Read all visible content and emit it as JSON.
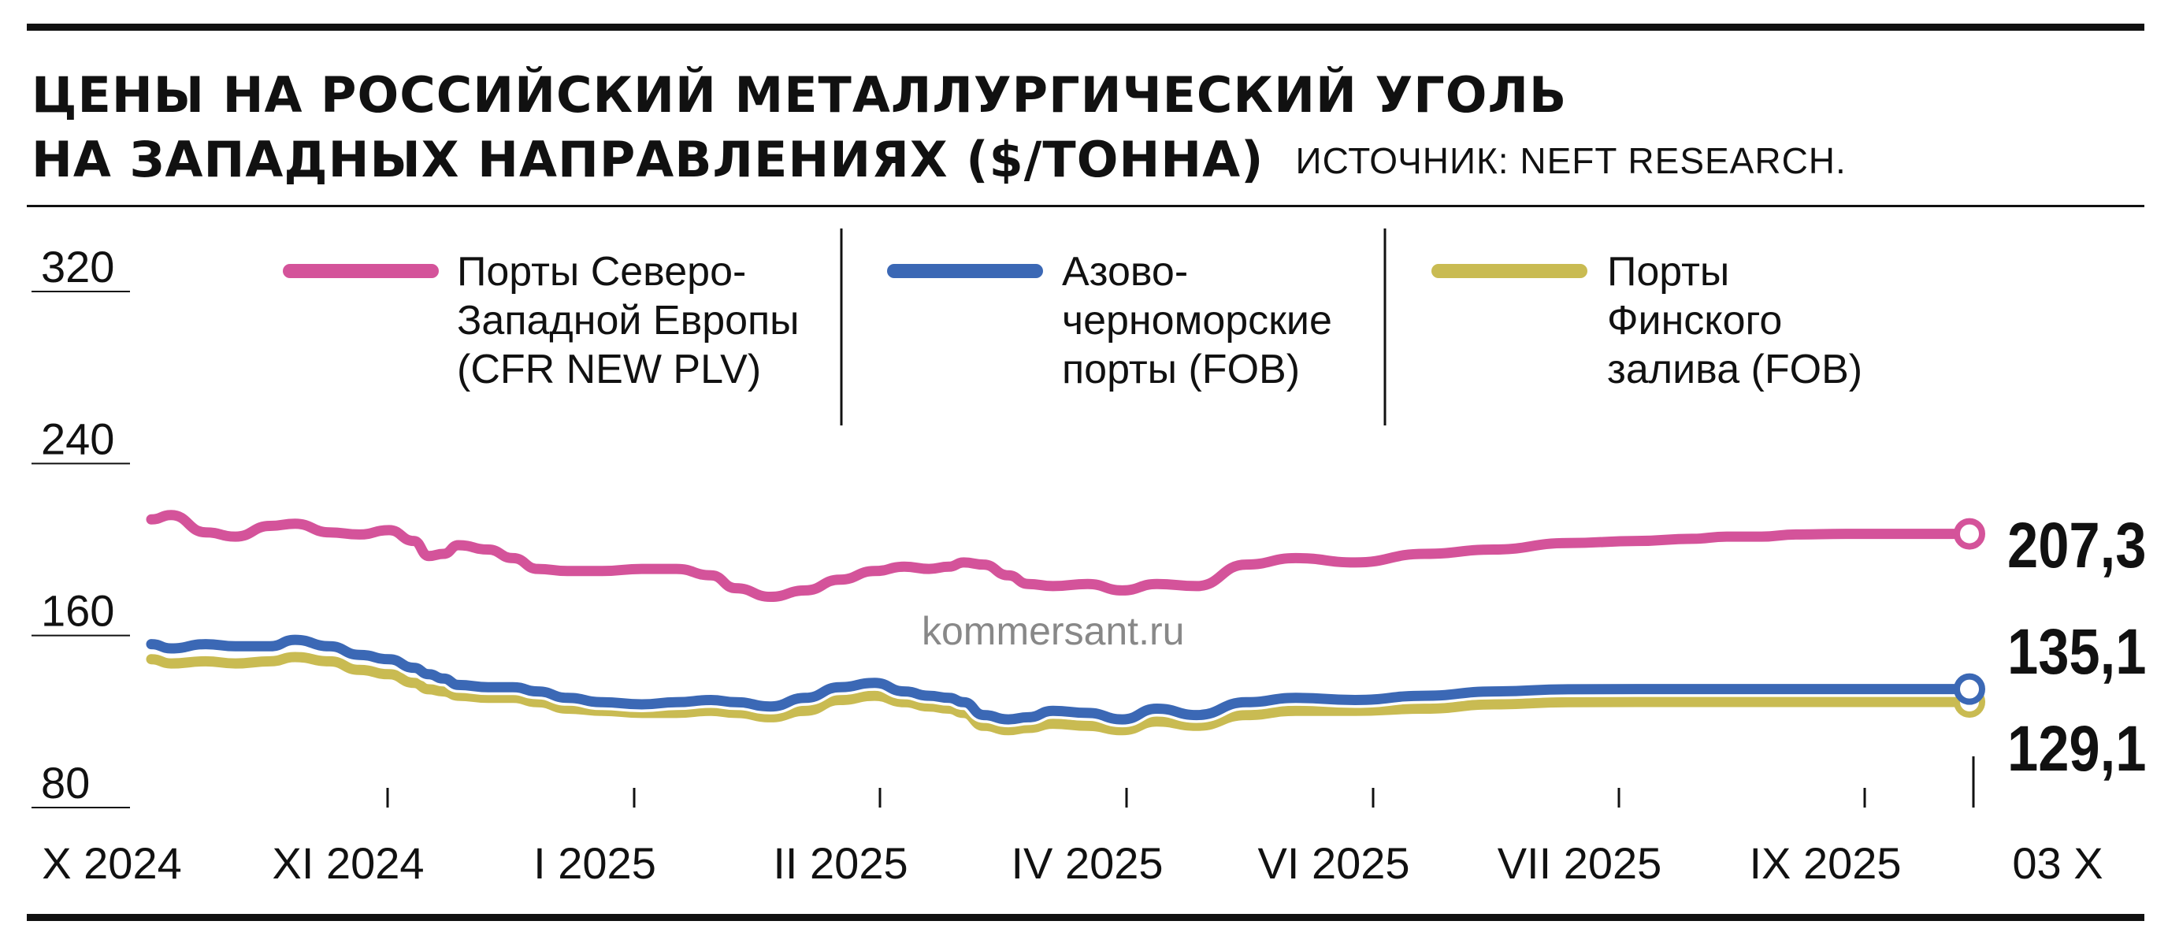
{
  "header": {
    "title_line1": "ЦЕНЫ НА РОССИЙСКИЙ МЕТАЛЛУРГИЧЕСКИЙ УГОЛЬ",
    "title_line2": "НА ЗАПАДНЫХ НАПРАВЛЕНИЯХ ($/ТОННА)",
    "source": "ИСТОЧНИК: NEFT RESEARCH."
  },
  "watermark": "kommersant.ru",
  "colors": {
    "nw_europe": "#d4539a",
    "azov_black_sea": "#3b68b5",
    "finnish_gulf": "#c9bb52",
    "ink": "#111111"
  },
  "chart_data": {
    "type": "line",
    "ylim": [
      80,
      320
    ],
    "yticks": [
      80,
      160,
      240,
      320
    ],
    "x_range": [
      "2024-10-01",
      "2025-10-03"
    ],
    "x_ticks": [
      {
        "label": "X 2024",
        "date": "2024-10-01"
      },
      {
        "label": "XI 2024",
        "date": "2024-11-01"
      },
      {
        "label": "I 2025",
        "date": "2024-12-01"
      },
      {
        "label": "II 2025",
        "date": "2025-01-01"
      },
      {
        "label": "IV 2025",
        "date": "2025-02-01"
      },
      {
        "label": "VI 2025",
        "date": "2025-03-01"
      },
      {
        "label": "VII 2025",
        "date": "2025-04-01"
      },
      {
        "label": "IX 2025",
        "date": "2025-05-01"
      },
      {
        "label": "03 X",
        "date": "2025-10-03"
      }
    ],
    "series": [
      {
        "name": "Порты Северо-Западной Европы (CFR NEW PLV)",
        "legend_lines": [
          "Порты Северо-",
          "Западной Европы",
          "(CFR NEW PLV)"
        ],
        "color": "#d4539a",
        "end_label": "207,3",
        "x": [
          "2024-10-01",
          "2024-10-05",
          "2024-10-12",
          "2024-10-18",
          "2024-10-25",
          "2024-10-30",
          "2024-11-06",
          "2024-11-12",
          "2024-11-18",
          "2024-11-23",
          "2024-11-26",
          "2024-11-29",
          "2024-12-02",
          "2024-12-08",
          "2024-12-13",
          "2024-12-18",
          "2024-12-24",
          "2024-12-31",
          "2025-01-08",
          "2025-01-15",
          "2025-01-22",
          "2025-01-27",
          "2025-02-03",
          "2025-02-10",
          "2025-02-17",
          "2025-02-24",
          "2025-03-02",
          "2025-03-07",
          "2025-03-11",
          "2025-03-14",
          "2025-03-18",
          "2025-03-23",
          "2025-03-27",
          "2025-04-01",
          "2025-04-08",
          "2025-04-15",
          "2025-04-22",
          "2025-04-30",
          "2025-05-10",
          "2025-05-20",
          "2025-06-01",
          "2025-06-15",
          "2025-06-29",
          "2025-07-14",
          "2025-07-28",
          "2025-08-08",
          "2025-08-15",
          "2025-08-22",
          "2025-08-29",
          "2025-09-08",
          "2025-09-15",
          "2025-09-22",
          "2025-09-30",
          "2025-10-03"
        ],
        "values": [
          214,
          216,
          208,
          206,
          211,
          212,
          208,
          207,
          209,
          204,
          197,
          198,
          202,
          200,
          196,
          191,
          190,
          190,
          191,
          191,
          188,
          182,
          178,
          181,
          186,
          190,
          192,
          191,
          192,
          194,
          193,
          188,
          184,
          183,
          184,
          181,
          184,
          183,
          193,
          196,
          194,
          198,
          200,
          203,
          204,
          205,
          206,
          206,
          207,
          207.3,
          207.3,
          207.3,
          207.3,
          207.3
        ]
      },
      {
        "name": "Азово-черноморские порты (FOB)",
        "legend_lines": [
          "Азово-",
          "черноморские",
          "порты (FOB)"
        ],
        "color": "#3b68b5",
        "end_label": "135,1",
        "x": [
          "2024-10-01",
          "2024-10-05",
          "2024-10-12",
          "2024-10-18",
          "2024-10-25",
          "2024-10-30",
          "2024-11-06",
          "2024-11-12",
          "2024-11-18",
          "2024-11-23",
          "2024-11-26",
          "2024-11-29",
          "2024-12-02",
          "2024-12-08",
          "2024-12-13",
          "2024-12-18",
          "2024-12-24",
          "2024-12-31",
          "2025-01-08",
          "2025-01-15",
          "2025-01-22",
          "2025-01-27",
          "2025-02-03",
          "2025-02-10",
          "2025-02-17",
          "2025-02-24",
          "2025-03-02",
          "2025-03-07",
          "2025-03-11",
          "2025-03-14",
          "2025-03-18",
          "2025-03-23",
          "2025-03-27",
          "2025-04-01",
          "2025-04-08",
          "2025-04-15",
          "2025-04-22",
          "2025-04-30",
          "2025-05-10",
          "2025-05-20",
          "2025-06-01",
          "2025-06-15",
          "2025-06-29",
          "2025-07-14",
          "2025-07-28",
          "2025-08-08",
          "2025-08-15",
          "2025-08-22",
          "2025-08-29",
          "2025-09-08",
          "2025-09-15",
          "2025-09-22",
          "2025-09-30",
          "2025-10-03"
        ],
        "values": [
          156,
          154,
          156,
          155,
          155,
          158,
          155,
          151,
          149,
          145,
          142,
          140,
          137,
          136,
          136,
          134,
          131,
          129,
          128,
          129,
          130,
          129,
          127,
          131,
          136,
          138,
          134,
          132,
          131,
          129,
          123,
          121,
          122,
          125,
          124,
          121,
          126,
          123,
          129,
          131,
          130,
          132,
          134,
          135,
          135.1,
          135.1,
          135.1,
          135.1,
          135.1,
          135.1,
          135.1,
          135.1,
          135.1,
          135.1
        ]
      },
      {
        "name": "Порты Финского залива (FOB)",
        "legend_lines": [
          "Порты",
          "Финского",
          "залива (FOB)"
        ],
        "color": "#c9bb52",
        "end_label": "129,1",
        "x": [
          "2024-10-01",
          "2024-10-05",
          "2024-10-12",
          "2024-10-18",
          "2024-10-25",
          "2024-10-30",
          "2024-11-06",
          "2024-11-12",
          "2024-11-18",
          "2024-11-23",
          "2024-11-26",
          "2024-11-29",
          "2024-12-02",
          "2024-12-08",
          "2024-12-13",
          "2024-12-18",
          "2024-12-24",
          "2024-12-31",
          "2025-01-08",
          "2025-01-15",
          "2025-01-22",
          "2025-01-27",
          "2025-02-03",
          "2025-02-10",
          "2025-02-17",
          "2025-02-24",
          "2025-03-02",
          "2025-03-07",
          "2025-03-11",
          "2025-03-14",
          "2025-03-18",
          "2025-03-23",
          "2025-03-27",
          "2025-04-01",
          "2025-04-08",
          "2025-04-15",
          "2025-04-22",
          "2025-04-30",
          "2025-05-10",
          "2025-05-20",
          "2025-06-01",
          "2025-06-15",
          "2025-06-29",
          "2025-07-14",
          "2025-07-28",
          "2025-08-08",
          "2025-08-15",
          "2025-08-22",
          "2025-08-29",
          "2025-09-08",
          "2025-09-15",
          "2025-09-22",
          "2025-09-30",
          "2025-10-03"
        ],
        "values": [
          149,
          147,
          148,
          147,
          148,
          150,
          148,
          144,
          142,
          138,
          135,
          134,
          132,
          131,
          131,
          129,
          126,
          125,
          124,
          124,
          125,
          124,
          122,
          125,
          130,
          132,
          129,
          127,
          126,
          124,
          118,
          116,
          117,
          119,
          118,
          116,
          120,
          118,
          123,
          125,
          125,
          126,
          128,
          129,
          129.1,
          129.1,
          129.1,
          129.1,
          129.1,
          129.1,
          129.1,
          129.1,
          129.1,
          129.1
        ]
      }
    ]
  }
}
